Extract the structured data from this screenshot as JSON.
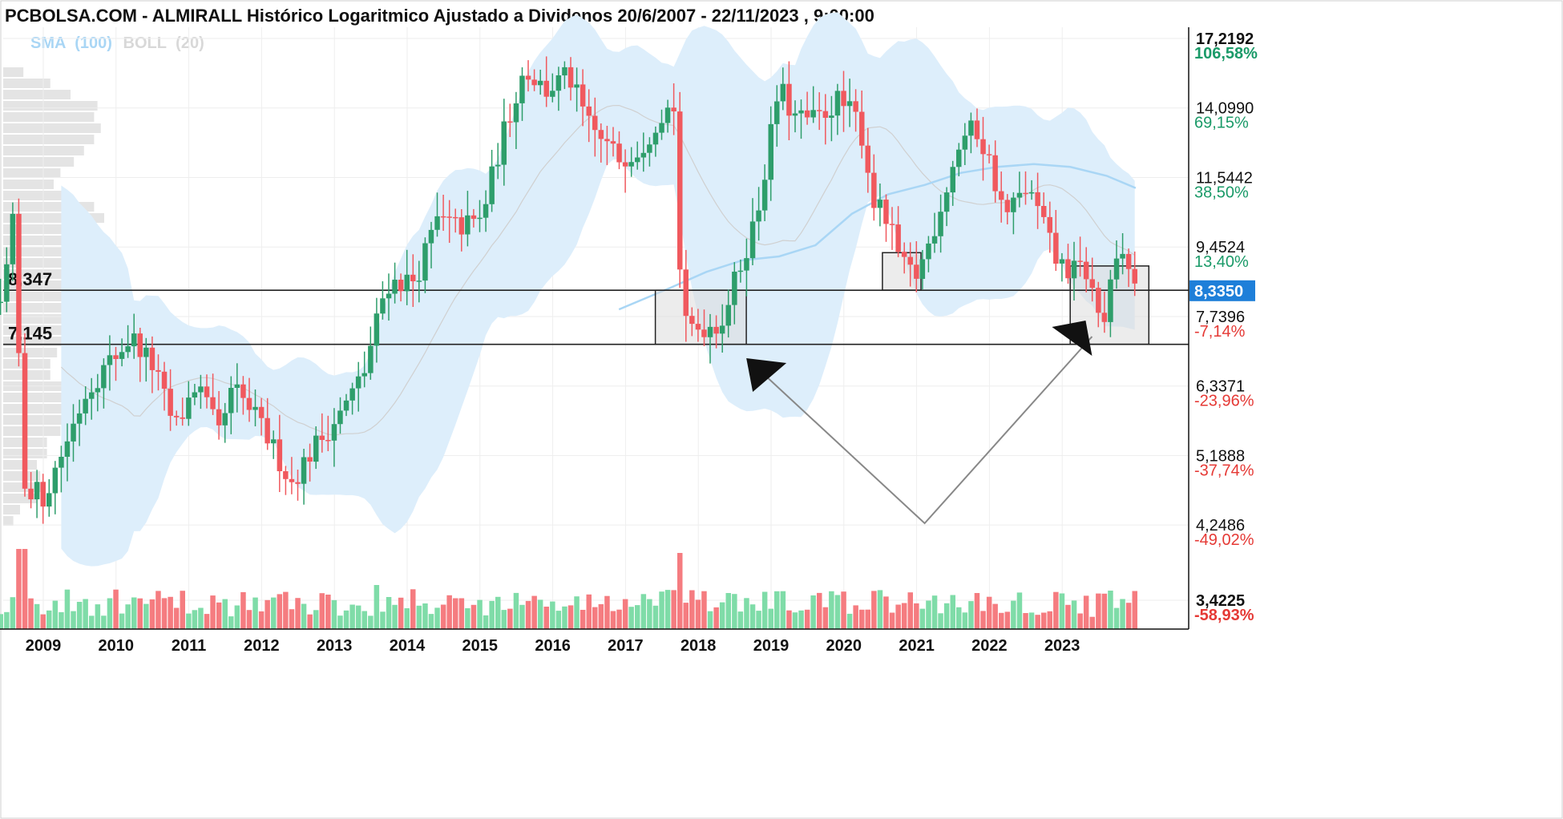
{
  "header": {
    "title": "PCBOLSA.COM - ALMIRALL Histórico Logaritmico Ajustado a Dividenos 20/6/2007 - 22/11/2023 , 9:00:00"
  },
  "legend": {
    "sma_label": "SMA",
    "sma_param": "(100)",
    "boll_label": "BOLL",
    "boll_param": "(20)"
  },
  "colors": {
    "up": "#2e9e6b",
    "down": "#f0595e",
    "up_volume": "#7fdca8",
    "down_volume": "#f57c80",
    "band_fill": "#ddeefb",
    "sma_line": "#a9d6f5",
    "boll_mid": "#d0d0d0",
    "pct_positive": "#1a9a68",
    "pct_negative": "#e53935",
    "price_box": "#1e7fd9",
    "volume_profile": "#e4e4e4"
  },
  "chart_data": {
    "type": "candlestick",
    "scale": "log",
    "ylim": [
      3.3,
      18.0
    ],
    "x_ticks": [
      "2009",
      "2010",
      "2011",
      "2012",
      "2013",
      "2014",
      "2015",
      "2016",
      "2017",
      "2018",
      "2019",
      "2020",
      "2021",
      "2022",
      "2023"
    ],
    "y_ticks": [
      {
        "value": "17,2192",
        "pct": "106,58%",
        "sign": "pos"
      },
      {
        "value": "14,0990",
        "pct": "69,15%",
        "sign": "pos"
      },
      {
        "value": "11,5442",
        "pct": "38,50%",
        "sign": "pos"
      },
      {
        "value": "9,4524",
        "pct": "13,40%",
        "sign": "pos"
      },
      {
        "value": "7,7396",
        "pct": "-7,14%",
        "sign": "neg"
      },
      {
        "value": "6,3371",
        "pct": "-23,96%",
        "sign": "neg"
      },
      {
        "value": "5,1888",
        "pct": "-37,74%",
        "sign": "neg"
      },
      {
        "value": "4,2486",
        "pct": "-49,02%",
        "sign": "neg"
      },
      {
        "value": "3,4225",
        "pct": "-58,93%",
        "sign": "neg"
      }
    ],
    "current_price": "8,3350",
    "levels": [
      {
        "label": "8,347",
        "value": 8.347
      },
      {
        "label": "7,145",
        "value": 7.145
      }
    ],
    "anchors": [
      {
        "date": 2008.3,
        "price": 7.8
      },
      {
        "date": 2008.5,
        "price": 10.5
      },
      {
        "date": 2008.6,
        "price": 4.8
      },
      {
        "date": 2008.9,
        "price": 4.6
      },
      {
        "date": 2009.5,
        "price": 6.3
      },
      {
        "date": 2010.1,
        "price": 7.3
      },
      {
        "date": 2010.4,
        "price": 6.7
      },
      {
        "date": 2010.7,
        "price": 5.6
      },
      {
        "date": 2011.0,
        "price": 6.4
      },
      {
        "date": 2011.3,
        "price": 5.5
      },
      {
        "date": 2011.5,
        "price": 6.3
      },
      {
        "date": 2011.8,
        "price": 5.8
      },
      {
        "date": 2012.0,
        "price": 5.4
      },
      {
        "date": 2012.3,
        "price": 4.8
      },
      {
        "date": 2012.6,
        "price": 5.3
      },
      {
        "date": 2013.0,
        "price": 5.9
      },
      {
        "date": 2013.3,
        "price": 6.6
      },
      {
        "date": 2013.6,
        "price": 8.5
      },
      {
        "date": 2014.0,
        "price": 8.6
      },
      {
        "date": 2014.3,
        "price": 10.2
      },
      {
        "date": 2014.6,
        "price": 10.0
      },
      {
        "date": 2014.9,
        "price": 10.2
      },
      {
        "date": 2015.2,
        "price": 13.0
      },
      {
        "date": 2015.5,
        "price": 15.8
      },
      {
        "date": 2015.8,
        "price": 14.8
      },
      {
        "date": 2016.1,
        "price": 15.5
      },
      {
        "date": 2016.4,
        "price": 13.3
      },
      {
        "date": 2016.8,
        "price": 12.2
      },
      {
        "date": 2017.1,
        "price": 12.6
      },
      {
        "date": 2017.4,
        "price": 14.0
      },
      {
        "date": 2017.6,
        "price": 14.2
      },
      {
        "date": 2017.65,
        "price": 7.5
      },
      {
        "date": 2017.9,
        "price": 7.5
      },
      {
        "date": 2018.2,
        "price": 7.6
      },
      {
        "date": 2018.4,
        "price": 8.6
      },
      {
        "date": 2018.7,
        "price": 10.4
      },
      {
        "date": 2019.0,
        "price": 15.0
      },
      {
        "date": 2019.2,
        "price": 13.7
      },
      {
        "date": 2019.5,
        "price": 13.6
      },
      {
        "date": 2019.8,
        "price": 14.4
      },
      {
        "date": 2020.1,
        "price": 13.6
      },
      {
        "date": 2020.3,
        "price": 10.8
      },
      {
        "date": 2020.5,
        "price": 10.1
      },
      {
        "date": 2020.7,
        "price": 8.9
      },
      {
        "date": 2020.9,
        "price": 8.7
      },
      {
        "date": 2021.1,
        "price": 9.8
      },
      {
        "date": 2021.5,
        "price": 12.9
      },
      {
        "date": 2021.7,
        "price": 13.3
      },
      {
        "date": 2021.9,
        "price": 12.0
      },
      {
        "date": 2022.1,
        "price": 10.3
      },
      {
        "date": 2022.4,
        "price": 11.2
      },
      {
        "date": 2022.6,
        "price": 10.3
      },
      {
        "date": 2022.8,
        "price": 9.1
      },
      {
        "date": 2023.0,
        "price": 8.8
      },
      {
        "date": 2023.2,
        "price": 8.9
      },
      {
        "date": 2023.45,
        "price": 7.5
      },
      {
        "date": 2023.6,
        "price": 8.8
      },
      {
        "date": 2023.75,
        "price": 9.3
      },
      {
        "date": 2023.9,
        "price": 8.3
      }
    ],
    "sma100": [
      {
        "date": 2016.8,
        "price": 7.9
      },
      {
        "date": 2017.5,
        "price": 8.4
      },
      {
        "date": 2018.0,
        "price": 8.8
      },
      {
        "date": 2018.5,
        "price": 9.1
      },
      {
        "date": 2019.0,
        "price": 9.2
      },
      {
        "date": 2019.5,
        "price": 9.5
      },
      {
        "date": 2020.0,
        "price": 10.4
      },
      {
        "date": 2020.5,
        "price": 11.0
      },
      {
        "date": 2021.0,
        "price": 11.3
      },
      {
        "date": 2021.5,
        "price": 11.7
      },
      {
        "date": 2022.0,
        "price": 11.9
      },
      {
        "date": 2022.5,
        "price": 12.0
      },
      {
        "date": 2023.0,
        "price": 11.9
      },
      {
        "date": 2023.5,
        "price": 11.6
      },
      {
        "date": 2023.9,
        "price": 11.2
      }
    ],
    "volume_ticks_note": "",
    "dates_start": 2007.47,
    "dates_end": 2023.9
  }
}
